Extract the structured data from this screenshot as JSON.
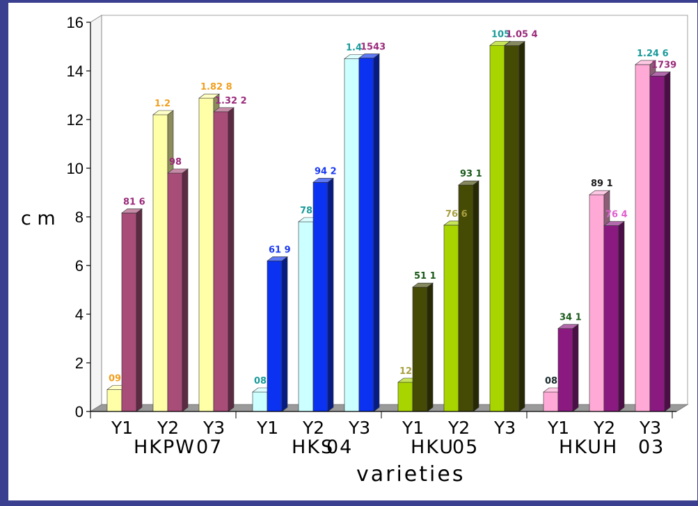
{
  "chart_data": {
    "type": "bar",
    "title": "",
    "ylabel": "c m",
    "xlabel": "varieties",
    "ylim": [
      0,
      16
    ],
    "yticks": [
      0,
      2,
      4,
      6,
      8,
      10,
      12,
      14,
      16
    ],
    "grid": false,
    "groups": [
      {
        "name": "HKPW 07",
        "categories": [
          "Y1",
          "Y2",
          "Y3"
        ],
        "pairs": [
          {
            "bars": [
              {
                "value": 0.9,
                "label": "09",
                "color": "#ffffa8",
                "label_color": "#f0a020"
              },
              {
                "value": 8.16,
                "label": "81 6",
                "color": "#a84c78",
                "label_color": "#9a2a7a"
              }
            ]
          },
          {
            "bars": [
              {
                "value": 12.2,
                "label": "1.2",
                "color": "#ffffa8",
                "label_color": "#f0a020"
              },
              {
                "value": 9.8,
                "label": "98",
                "color": "#a84c78",
                "label_color": "#9a2a7a"
              }
            ]
          },
          {
            "bars": [
              {
                "value": 12.88,
                "label": "1.82 8",
                "color": "#ffffa8",
                "label_color": "#f0a020"
              },
              {
                "value": 12.32,
                "label": "1.32 2",
                "color": "#a84c78",
                "label_color": "#9a2a7a"
              }
            ]
          }
        ]
      },
      {
        "name": "HKS 04",
        "categories": [
          "Y1",
          "Y2",
          "Y3"
        ],
        "pairs": [
          {
            "bars": [
              {
                "value": 0.8,
                "label": "08",
                "color": "#ccffff",
                "label_color": "#1a9a9a"
              },
              {
                "value": 6.19,
                "label": "61 9",
                "color": "#0a32f0",
                "label_color": "#1a3af0"
              }
            ]
          },
          {
            "bars": [
              {
                "value": 7.8,
                "label": "78",
                "color": "#ccffff",
                "label_color": "#1a9a9a"
              },
              {
                "value": 9.42,
                "label": "94 2",
                "color": "#0a32f0",
                "label_color": "#1a3af0"
              }
            ]
          },
          {
            "bars": [
              {
                "value": 14.5,
                "label": "1.4",
                "color": "#ccffff",
                "label_color": "#1a9a9a"
              },
              {
                "value": 14.53,
                "label": "1543",
                "color": "#0a32f0",
                "label_color": "#9a2a7a"
              }
            ]
          }
        ]
      },
      {
        "name": "HKU 05",
        "categories": [
          "Y1",
          "Y2",
          "Y3"
        ],
        "pairs": [
          {
            "bars": [
              {
                "value": 1.2,
                "label": "12",
                "color": "#a8d400",
                "label_color": "#a8a040"
              },
              {
                "value": 5.11,
                "label": "51 1",
                "color": "#454a05",
                "label_color": "#1a5a1a"
              }
            ]
          },
          {
            "bars": [
              {
                "value": 7.66,
                "label": "76 6",
                "color": "#a8d400",
                "label_color": "#a8a040"
              },
              {
                "value": 9.31,
                "label": "93 1",
                "color": "#454a05",
                "label_color": "#1a5a1a"
              }
            ]
          },
          {
            "bars": [
              {
                "value": 15.05,
                "label": "105",
                "color": "#a8d400",
                "label_color": "#1a9a9a"
              },
              {
                "value": 15.04,
                "label": "1.05 4",
                "color": "#454a05",
                "label_color": "#9a2a7a"
              }
            ]
          }
        ]
      },
      {
        "name": "HKUH 03",
        "categories": [
          "Y1",
          "Y2",
          "Y3"
        ],
        "pairs": [
          {
            "bars": [
              {
                "value": 0.8,
                "label": "08",
                "color": "#ffaad6",
                "label_color": "#1a2a2a"
              },
              {
                "value": 3.41,
                "label": "34 1",
                "color": "#8a1a80",
                "label_color": "#1a5a1a"
              }
            ]
          },
          {
            "bars": [
              {
                "value": 8.91,
                "label": "89 1",
                "color": "#ffaad6",
                "label_color": "#1a1a1a"
              },
              {
                "value": 7.64,
                "label": "76 4",
                "color": "#8a1a80",
                "label_color": "#e060d0"
              }
            ]
          },
          {
            "bars": [
              {
                "value": 14.26,
                "label": "1.24 6",
                "color": "#ffaad6",
                "label_color": "#1a9a9a"
              },
              {
                "value": 13.79,
                "label": "1739",
                "color": "#8a1a80",
                "label_color": "#9a2a7a"
              }
            ]
          }
        ]
      }
    ]
  }
}
